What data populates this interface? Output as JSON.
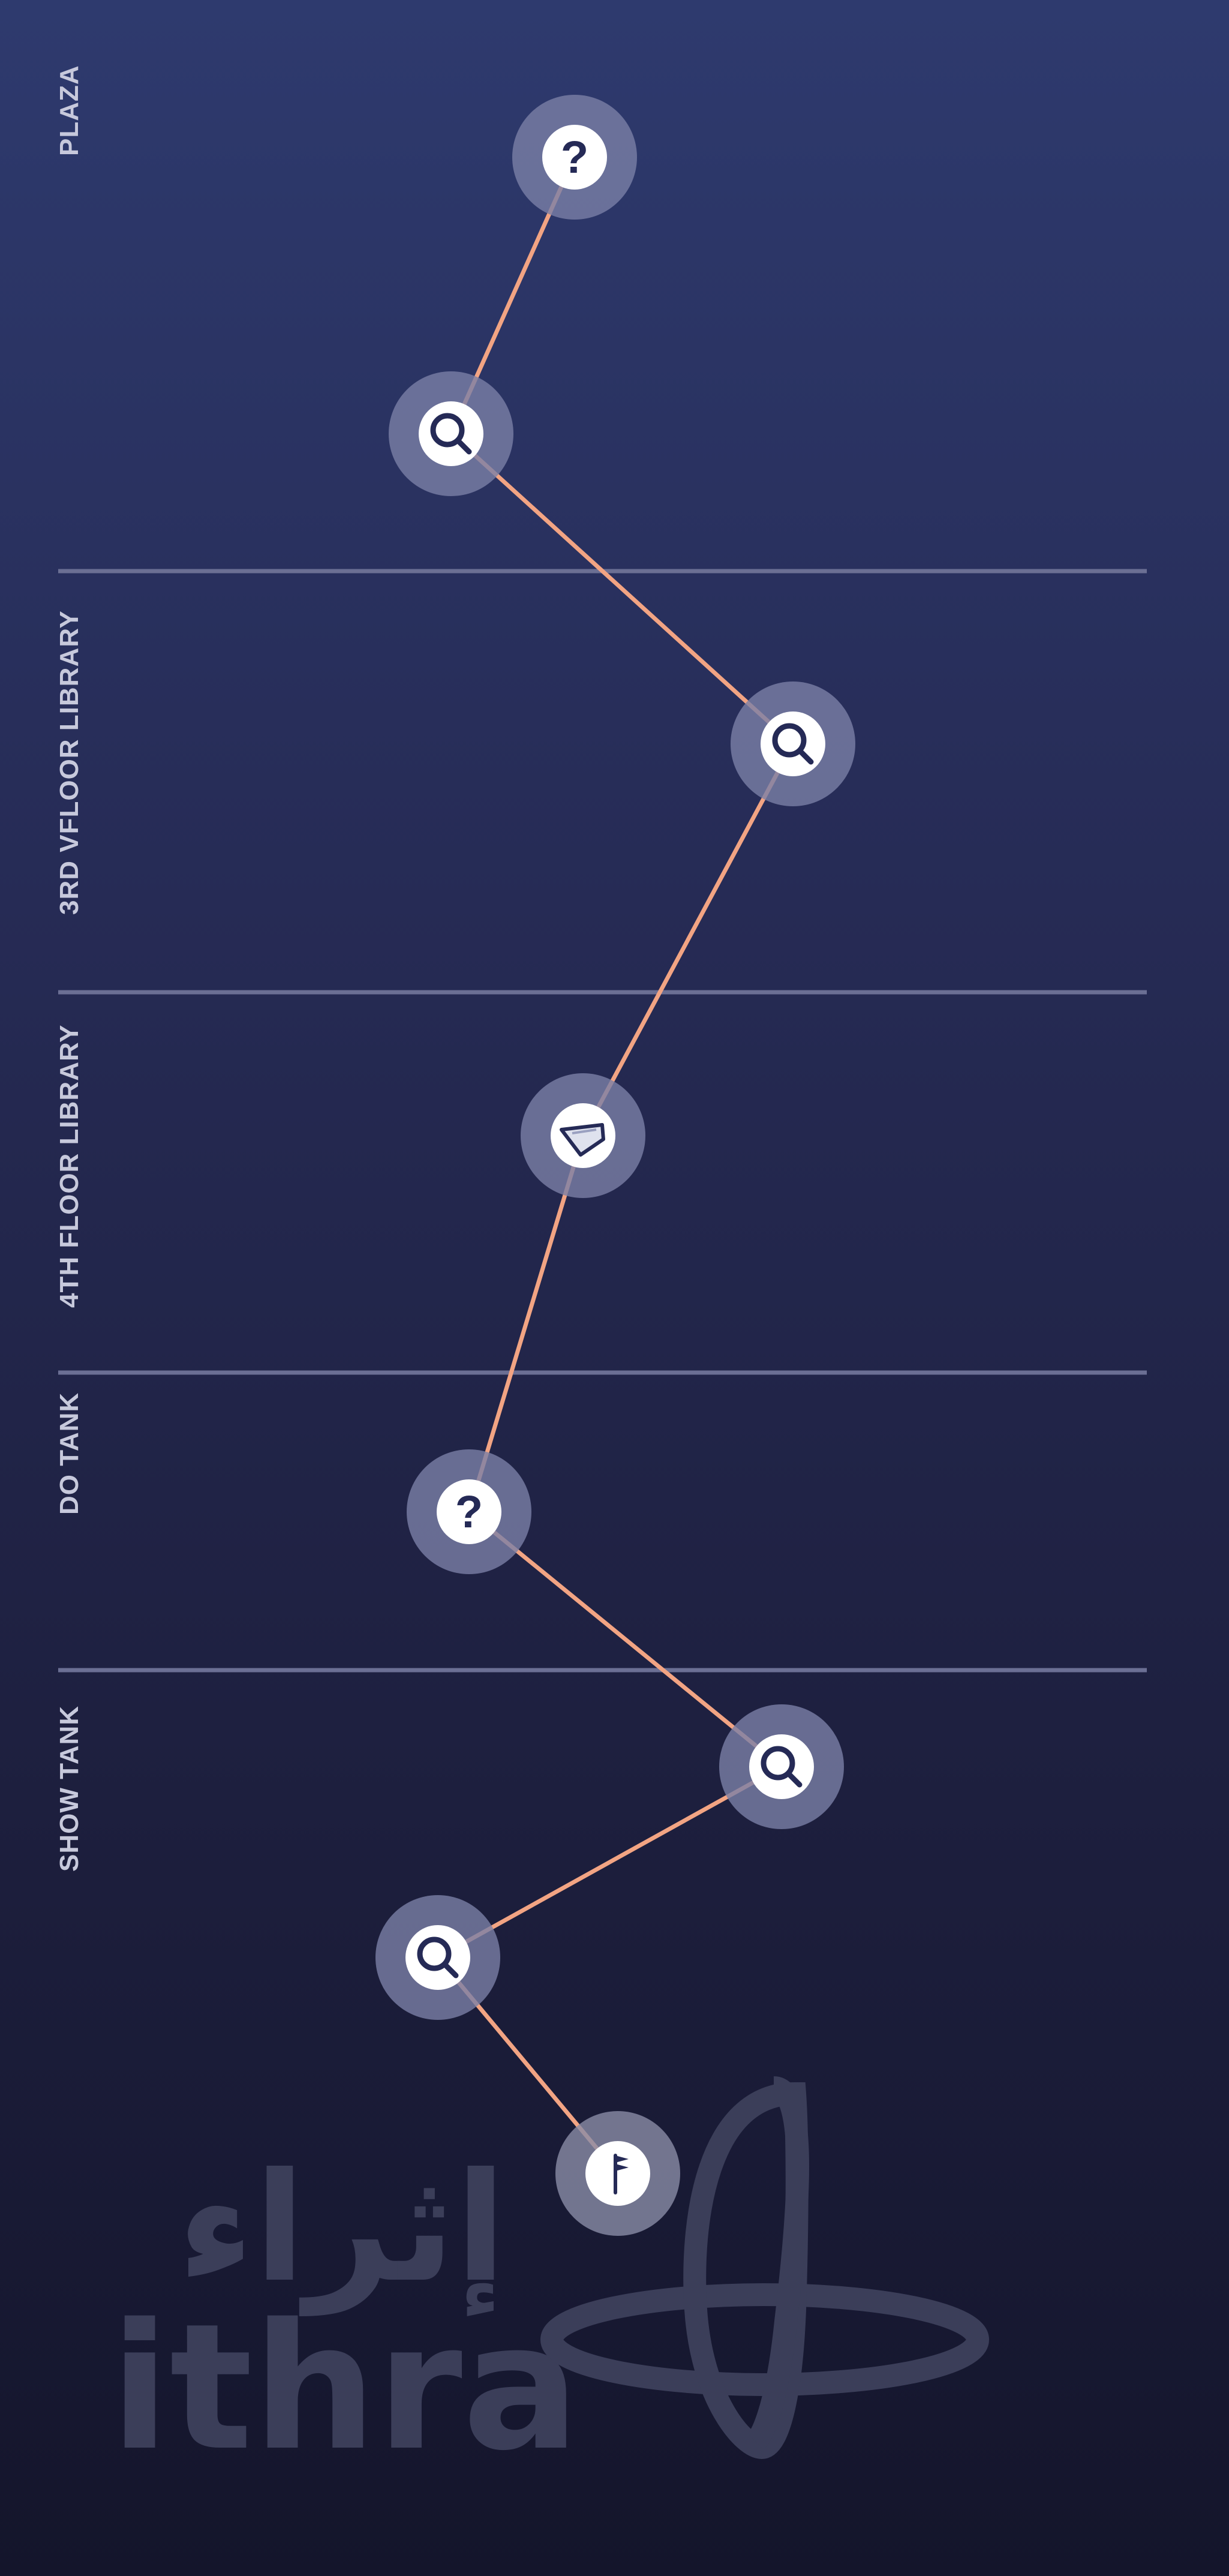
{
  "zones": [
    {
      "id": "plaza",
      "label": "PLAZA"
    },
    {
      "id": "3rd-floor-library",
      "label": "3RD VFLOOR LIBRARY"
    },
    {
      "id": "4th-floor-library",
      "label": "4TH FLOOR LIBRARY"
    },
    {
      "id": "do-tank",
      "label": "DO TANK"
    },
    {
      "id": "show-tank",
      "label": "SHOW TANK"
    }
  ],
  "nodes": [
    {
      "id": "node-1",
      "icon": "question-icon",
      "glyph": "?"
    },
    {
      "id": "node-2",
      "icon": "search-icon"
    },
    {
      "id": "node-3",
      "icon": "search-icon"
    },
    {
      "id": "node-4",
      "icon": "compass-shape-icon"
    },
    {
      "id": "node-5",
      "icon": "question-icon",
      "glyph": "?"
    },
    {
      "id": "node-6",
      "icon": "search-icon"
    },
    {
      "id": "node-7",
      "icon": "search-icon"
    },
    {
      "id": "node-8",
      "icon": "flag-icon"
    }
  ],
  "logo": {
    "arabic": "إثراء",
    "latin": "ithra"
  },
  "colors": {
    "path": "#f2a483",
    "halo": "#7b7fa6",
    "icon": "#252a56",
    "divider": "#6b6f94"
  }
}
